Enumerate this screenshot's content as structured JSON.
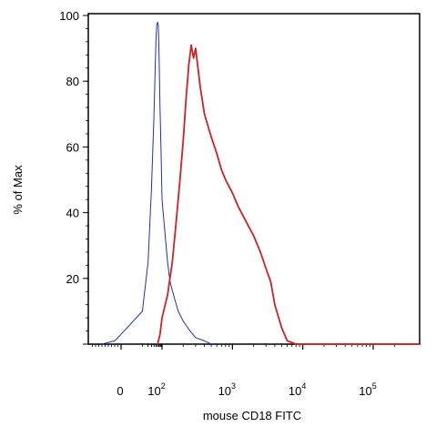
{
  "chart_data": {
    "type": "line",
    "title": "",
    "xlabel": "mouse CD18 FITC",
    "ylabel": "% of Max",
    "x_scale": "biexponential (logicle)",
    "xlim_labels": [
      "0",
      "10^2",
      "10^3",
      "10^4",
      "10^5"
    ],
    "x_ticks": [
      {
        "value": 0,
        "base": "0",
        "exp": ""
      },
      {
        "value": 100,
        "base": "10",
        "exp": "2"
      },
      {
        "value": 1000,
        "base": "10",
        "exp": "3"
      },
      {
        "value": 10000,
        "base": "10",
        "exp": "4"
      },
      {
        "value": 100000,
        "base": "10",
        "exp": "5"
      }
    ],
    "y_ticks": [
      0,
      20,
      40,
      60,
      80,
      100
    ],
    "y_tick_labels": [
      "",
      "20",
      "40",
      "60",
      "80",
      "100"
    ],
    "ylim": [
      0,
      100
    ],
    "grid": false,
    "legend": "none",
    "series": [
      {
        "color": "#1f2fbf",
        "x": [
          -60,
          -20,
          0,
          10,
          20,
          30,
          40,
          45,
          50,
          55,
          60,
          65,
          70,
          80,
          90,
          100,
          110,
          120,
          130,
          150,
          170,
          200,
          250,
          300,
          400,
          500
        ],
        "y": [
          0,
          1,
          3,
          10,
          25,
          48,
          70,
          82,
          92,
          97,
          98,
          97,
          90,
          72,
          58,
          44,
          34,
          25,
          19,
          14,
          10,
          7,
          4,
          2,
          1,
          0
        ]
      },
      {
        "color": "#d42020",
        "x": [
          60,
          80,
          100,
          120,
          140,
          160,
          180,
          200,
          220,
          240,
          260,
          280,
          300,
          350,
          400,
          500,
          600,
          700,
          800,
          1000,
          1200,
          1500,
          2000,
          2500,
          3000,
          3500,
          4000,
          5000,
          6000,
          8000
        ],
        "y": [
          0,
          3,
          8,
          15,
          25,
          38,
          50,
          62,
          75,
          85,
          91,
          87,
          90,
          78,
          70,
          63,
          58,
          53,
          50,
          46,
          42,
          38,
          33,
          28,
          23,
          19,
          12,
          5,
          1,
          0
        ]
      }
    ]
  }
}
